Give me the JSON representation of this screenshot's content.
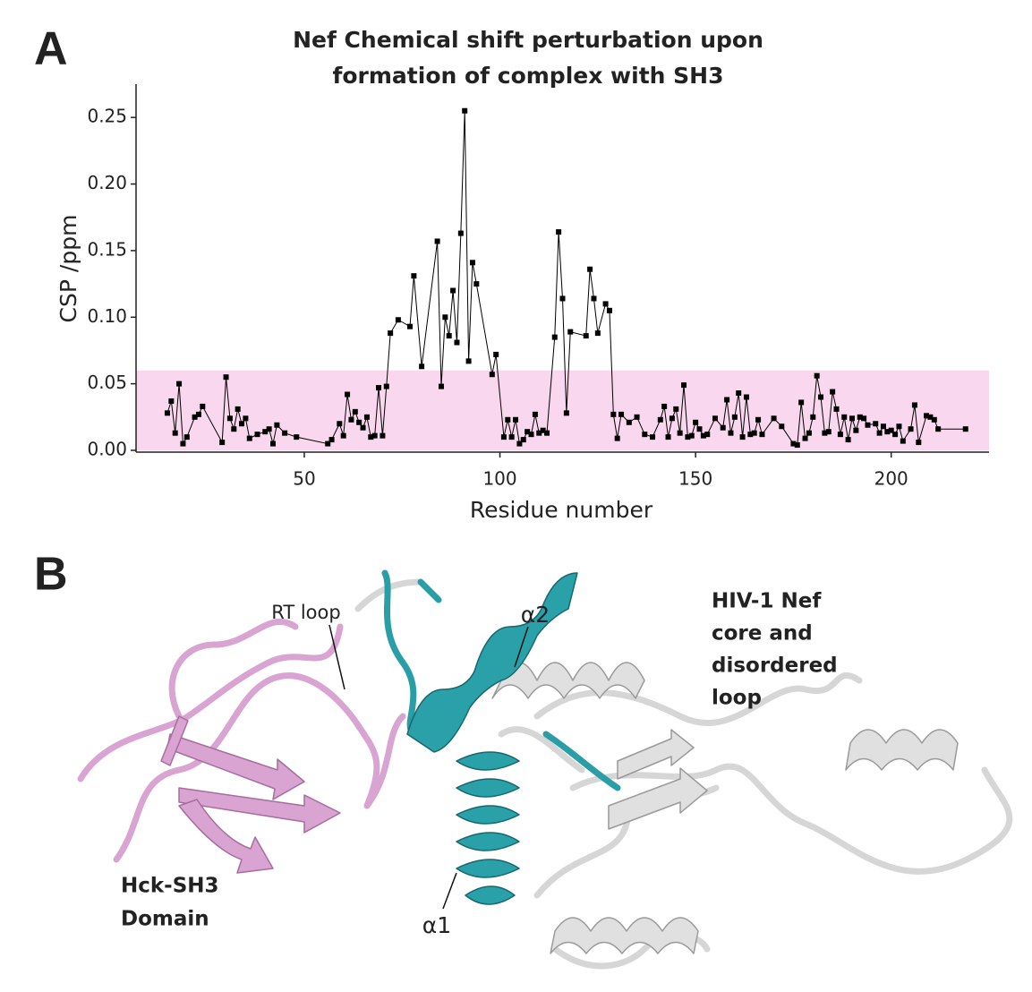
{
  "panel_a_label": "A",
  "chart_data": {
    "type": "line",
    "title": [
      "Nef Chemical shift perturbation upon",
      "formation of complex with SH3"
    ],
    "x_label": "Residue number",
    "y_label": "CSP /ppm",
    "color": "#000000",
    "markers": true,
    "highlight_band": {
      "from": 0,
      "to": 0.06,
      "color": "#f9d7ee"
    },
    "xlim": [
      7,
      225
    ],
    "ylim": [
      0,
      0.275
    ],
    "xticks": [
      50,
      100,
      150,
      200
    ],
    "yticks": [
      {
        "value": 0,
        "label": "0.00"
      },
      0.05,
      {
        "value": 0.1,
        "label": "0.10"
      },
      0.15,
      {
        "value": 0.2,
        "label": "0.20"
      },
      0.25
    ],
    "x": [
      15,
      16,
      17,
      18,
      19,
      20,
      22,
      23,
      24,
      29,
      30,
      31,
      32,
      33,
      34,
      35,
      36,
      38,
      40,
      41,
      42,
      43,
      45,
      48,
      56,
      57,
      59,
      60,
      61,
      62,
      63,
      64,
      65,
      66,
      67,
      68,
      69,
      70,
      71,
      72,
      74,
      77,
      78,
      80,
      84,
      85,
      86,
      87,
      88,
      89,
      90,
      91,
      92,
      93,
      94,
      98,
      99,
      101,
      102,
      103,
      104,
      105,
      106,
      107,
      108,
      109,
      110,
      111,
      112,
      114,
      115,
      116,
      117,
      118,
      122,
      123,
      124,
      125,
      127,
      128,
      129,
      130,
      131,
      133,
      135,
      137,
      139,
      141,
      142,
      143,
      144,
      145,
      146,
      147,
      148,
      149,
      150,
      151,
      152,
      153,
      155,
      157,
      158,
      159,
      160,
      161,
      162,
      163,
      164,
      165,
      166,
      167,
      170,
      172,
      175,
      176,
      177,
      178,
      179,
      180,
      181,
      182,
      183,
      184,
      185,
      186,
      187,
      188,
      189,
      190,
      191,
      192,
      193,
      194,
      196,
      197,
      198,
      199,
      200,
      201,
      202,
      203,
      205,
      206,
      207,
      209,
      210,
      211,
      212,
      219
    ],
    "values": [
      0.028,
      0.037,
      0.013,
      0.05,
      0.005,
      0.01,
      0.025,
      0.027,
      0.033,
      0.006,
      0.055,
      0.024,
      0.016,
      0.031,
      0.02,
      0.024,
      0.009,
      0.012,
      0.014,
      0.016,
      0.005,
      0.019,
      0.013,
      0.01,
      0.005,
      0.008,
      0.02,
      0.011,
      0.042,
      0.023,
      0.029,
      0.021,
      0.017,
      0.025,
      0.01,
      0.011,
      0.047,
      0.011,
      0.048,
      0.088,
      0.098,
      0.093,
      0.131,
      0.063,
      0.157,
      0.048,
      0.1,
      0.086,
      0.12,
      0.081,
      0.163,
      0.255,
      0.067,
      0.141,
      0.125,
      0.057,
      0.072,
      0.01,
      0.023,
      0.01,
      0.023,
      0.005,
      0.008,
      0.014,
      0.012,
      0.027,
      0.013,
      0.015,
      0.013,
      0.085,
      0.164,
      0.114,
      0.028,
      0.089,
      0.086,
      0.136,
      0.114,
      0.088,
      0.11,
      0.105,
      0.027,
      0.009,
      0.027,
      0.021,
      0.025,
      0.012,
      0.01,
      0.023,
      0.033,
      0.01,
      0.024,
      0.031,
      0.013,
      0.049,
      0.01,
      0.011,
      0.021,
      0.016,
      0.011,
      0.012,
      0.024,
      0.017,
      0.038,
      0.013,
      0.025,
      0.043,
      0.01,
      0.04,
      0.012,
      0.013,
      0.023,
      0.012,
      0.024,
      0.018,
      0.005,
      0.004,
      0.036,
      0.009,
      0.013,
      0.025,
      0.056,
      0.04,
      0.013,
      0.014,
      0.044,
      0.031,
      0.012,
      0.025,
      0.008,
      0.024,
      0.015,
      0.025,
      0.024,
      0.019,
      0.02,
      0.013,
      0.018,
      0.014,
      0.015,
      0.012,
      0.018,
      0.007,
      0.016,
      0.034,
      0.006,
      0.026,
      0.025,
      0.023,
      0.016,
      0.016
    ]
  },
  "panel_b": {
    "label": "B",
    "rt_loop": "RT loop",
    "alpha2": "α2",
    "alpha1": "α1",
    "nef": [
      "HIV-1 Nef",
      "core and",
      "disordered",
      "loop"
    ],
    "sh3": [
      "Hck-SH3",
      "Domain"
    ]
  }
}
